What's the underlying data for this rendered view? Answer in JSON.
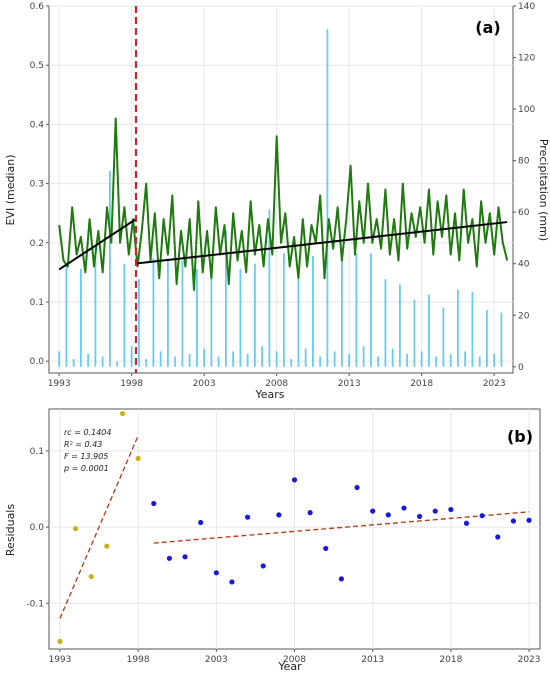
{
  "chart_data": [
    {
      "type": "line",
      "panel_label": "(a)",
      "xlabel": "Years",
      "ylabel": "EVI (median)",
      "y2label": "Precipitation (mm)",
      "xlim": [
        1992.3,
        2024.3
      ],
      "ylim": [
        -0.02,
        0.6
      ],
      "y2lim": [
        -2.4,
        140
      ],
      "x_ticks": [
        1993,
        1998,
        2003,
        2008,
        2013,
        2018,
        2023
      ],
      "x_tick_labels": [
        "1993",
        "1998",
        "2003",
        "2008",
        "2013",
        "2018",
        "2023"
      ],
      "y_ticks": [
        0.0,
        0.1,
        0.2,
        0.3,
        0.4,
        0.5,
        0.6
      ],
      "y_tick_labels": [
        "0.0",
        "0.1",
        "0.2",
        "0.3",
        "0.4",
        "0.5",
        "0.6"
      ],
      "y2_ticks": [
        0,
        20,
        40,
        60,
        80,
        100,
        120,
        140
      ],
      "y2_tick_labels": [
        "0",
        "20",
        "40",
        "60",
        "80",
        "100",
        "120",
        "140"
      ],
      "grid": true,
      "breakpoint_year": 1998.3,
      "series": [
        {
          "kind": "line",
          "color": "#1f7a0f",
          "x": [
            1993.0,
            1993.3,
            1993.6,
            1993.9,
            1994.2,
            1994.5,
            1994.8,
            1995.1,
            1995.4,
            1995.7,
            1996.0,
            1996.3,
            1996.6,
            1996.9,
            1997.2,
            1997.5,
            1997.8,
            1998.1,
            1998.4,
            1998.7,
            1999.0,
            1999.3,
            1999.6,
            1999.9,
            2000.2,
            2000.5,
            2000.8,
            2001.1,
            2001.4,
            2001.7,
            2002.0,
            2002.3,
            2002.6,
            2002.9,
            2003.2,
            2003.5,
            2003.8,
            2004.1,
            2004.4,
            2004.7,
            2005.0,
            2005.3,
            2005.6,
            2005.9,
            2006.2,
            2006.5,
            2006.8,
            2007.1,
            2007.4,
            2007.7,
            2008.0,
            2008.3,
            2008.6,
            2008.9,
            2009.2,
            2009.5,
            2009.8,
            2010.1,
            2010.4,
            2010.7,
            2011.0,
            2011.3,
            2011.6,
            2011.9,
            2012.2,
            2012.5,
            2012.8,
            2013.1,
            2013.4,
            2013.7,
            2014.0,
            2014.3,
            2014.6,
            2014.9,
            2015.2,
            2015.5,
            2015.8,
            2016.1,
            2016.4,
            2016.7,
            2017.0,
            2017.3,
            2017.6,
            2017.9,
            2018.2,
            2018.5,
            2018.8,
            2019.1,
            2019.4,
            2019.7,
            2020.0,
            2020.3,
            2020.6,
            2020.9,
            2021.2,
            2021.5,
            2021.8,
            2022.1,
            2022.4,
            2022.7,
            2023.0,
            2023.3,
            2023.6,
            2023.9
          ],
          "y": [
            0.23,
            0.17,
            0.16,
            0.26,
            0.18,
            0.21,
            0.15,
            0.24,
            0.16,
            0.22,
            0.15,
            0.26,
            0.2,
            0.41,
            0.2,
            0.26,
            0.18,
            0.24,
            0.16,
            0.22,
            0.3,
            0.17,
            0.25,
            0.14,
            0.24,
            0.18,
            0.28,
            0.13,
            0.22,
            0.16,
            0.24,
            0.12,
            0.27,
            0.15,
            0.22,
            0.14,
            0.26,
            0.18,
            0.23,
            0.13,
            0.25,
            0.17,
            0.22,
            0.15,
            0.27,
            0.18,
            0.23,
            0.16,
            0.24,
            0.18,
            0.38,
            0.2,
            0.25,
            0.16,
            0.21,
            0.14,
            0.24,
            0.16,
            0.23,
            0.2,
            0.28,
            0.14,
            0.24,
            0.19,
            0.26,
            0.17,
            0.24,
            0.33,
            0.18,
            0.27,
            0.2,
            0.3,
            0.2,
            0.24,
            0.19,
            0.29,
            0.18,
            0.24,
            0.17,
            0.3,
            0.19,
            0.25,
            0.21,
            0.26,
            0.2,
            0.29,
            0.18,
            0.27,
            0.21,
            0.28,
            0.18,
            0.25,
            0.17,
            0.29,
            0.2,
            0.24,
            0.16,
            0.27,
            0.2,
            0.25,
            0.18,
            0.26,
            0.2,
            0.17
          ]
        },
        {
          "kind": "trend",
          "color": "#000000",
          "x": [
            1993.0,
            1998.3
          ],
          "y": [
            0.155,
            0.24
          ]
        },
        {
          "kind": "trend",
          "color": "#000000",
          "x": [
            1998.3,
            2023.9
          ],
          "y": [
            0.165,
            0.235
          ]
        },
        {
          "kind": "bar",
          "axis": "y2",
          "color": "#4cc3ee",
          "x": [
            1993.0,
            1993.5,
            1994.0,
            1994.5,
            1995.0,
            1995.5,
            1996.0,
            1996.5,
            1997.0,
            1997.5,
            1998.0,
            1998.5,
            1999.0,
            1999.5,
            2000.0,
            2000.5,
            2001.0,
            2001.5,
            2002.0,
            2002.5,
            2003.0,
            2003.5,
            2004.0,
            2004.5,
            2005.0,
            2005.5,
            2006.0,
            2006.5,
            2007.0,
            2007.5,
            2008.0,
            2008.5,
            2009.0,
            2009.5,
            2010.0,
            2010.5,
            2011.0,
            2011.5,
            2012.0,
            2012.5,
            2013.0,
            2013.5,
            2014.0,
            2014.5,
            2015.0,
            2015.5,
            2016.0,
            2016.5,
            2017.0,
            2017.5,
            2018.0,
            2018.5,
            2019.0,
            2019.5,
            2020.0,
            2020.5,
            2021.0,
            2021.5,
            2022.0,
            2022.5,
            2023.0,
            2023.5
          ],
          "values": [
            6,
            40,
            3,
            38,
            5,
            47,
            4,
            76,
            2,
            40,
            8,
            34,
            3,
            42,
            6,
            42,
            4,
            41,
            5,
            38,
            7,
            36,
            4,
            53,
            6,
            38,
            5,
            40,
            8,
            61,
            6,
            44,
            3,
            34,
            7,
            43,
            4,
            131,
            6,
            41,
            5,
            44,
            8,
            44,
            4,
            34,
            7,
            32,
            5,
            26,
            6,
            28,
            4,
            23,
            5,
            30,
            6,
            29,
            4,
            22,
            5,
            21
          ]
        }
      ]
    },
    {
      "type": "scatter",
      "panel_label": "(b)",
      "xlabel": "Year",
      "ylabel": "Residuals",
      "xlim": [
        1992.3,
        2023.7
      ],
      "ylim": [
        -0.16,
        0.155
      ],
      "x_ticks": [
        1993,
        1998,
        2003,
        2008,
        2013,
        2018,
        2023
      ],
      "x_tick_labels": [
        "1993",
        "1998",
        "2003",
        "2008",
        "2013",
        "2018",
        "2023"
      ],
      "y_ticks": [
        -0.1,
        0.0,
        0.1
      ],
      "y_tick_labels": [
        "-0.1",
        "0.0",
        "0.1"
      ],
      "grid": true,
      "annotations": [
        "rc = 0.1404",
        "R² = 0.43",
        "F = 13.905",
        "p = 0.0001"
      ],
      "series": [
        {
          "kind": "points",
          "color": "#c9b21b",
          "x": [
            1993,
            1994,
            1995,
            1996,
            1997,
            1998
          ],
          "y": [
            -0.15,
            -0.002,
            -0.065,
            -0.025,
            0.149,
            0.09
          ]
        },
        {
          "kind": "points",
          "color": "#1a1ad6",
          "x": [
            1999,
            2000,
            2001,
            2002,
            2003,
            2004,
            2005,
            2006,
            2007,
            2008,
            2009,
            2010,
            2011,
            2012,
            2013,
            2014,
            2015,
            2016,
            2017,
            2018,
            2019,
            2020,
            2021,
            2022,
            2023
          ],
          "y": [
            0.031,
            -0.041,
            -0.039,
            0.006,
            -0.06,
            -0.072,
            0.013,
            -0.051,
            0.016,
            0.062,
            0.019,
            -0.028,
            -0.068,
            0.052,
            0.021,
            0.016,
            0.025,
            0.014,
            0.021,
            0.023,
            0.005,
            0.015,
            -0.013,
            0.008,
            0.009
          ]
        },
        {
          "kind": "trend",
          "color": "#b03a10",
          "x": [
            1993,
            1998
          ],
          "y": [
            -0.12,
            0.12
          ]
        },
        {
          "kind": "trend",
          "color": "#b03a10",
          "x": [
            1999,
            2023
          ],
          "y": [
            -0.021,
            0.02
          ]
        }
      ]
    }
  ]
}
